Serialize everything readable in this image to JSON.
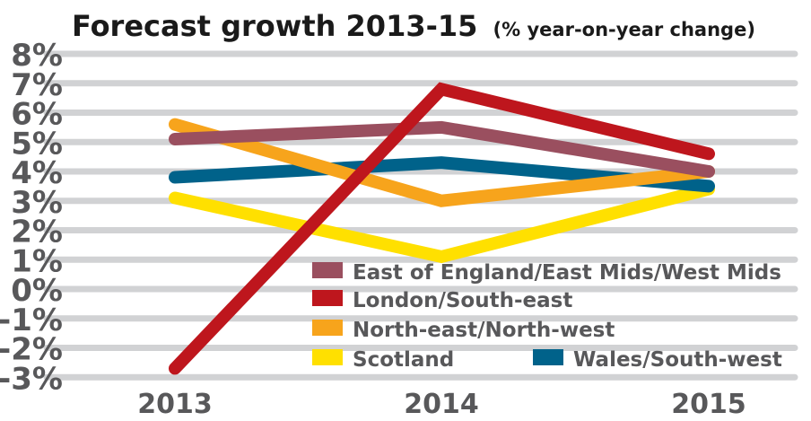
{
  "chart_data": {
    "type": "line",
    "title": "Forecast growth 2013-15",
    "subtitle": "(% year-on-year change)",
    "categories": [
      "2013",
      "2014",
      "2015"
    ],
    "ylim": [
      -3,
      8
    ],
    "yticks": [
      8,
      7,
      6,
      5,
      4,
      3,
      2,
      1,
      0,
      -1,
      -2,
      -3
    ],
    "ytick_labels": [
      "8%",
      "7%",
      "6%",
      "5%",
      "4%",
      "3%",
      "2%",
      "1%",
      "0%",
      "-1%",
      "-2%",
      "-3%"
    ],
    "grid": true,
    "legend_placement": "bottom-right",
    "series": [
      {
        "name": "East of England/East Mids/West Mids",
        "color": "#9a4f5f",
        "values": [
          5.1,
          5.5,
          4.0
        ]
      },
      {
        "name": "London/South-east",
        "color": "#be161d",
        "values": [
          -2.7,
          6.8,
          4.6
        ]
      },
      {
        "name": "North-east/North-west",
        "color": "#f7a41c",
        "values": [
          5.6,
          3.0,
          4.0
        ]
      },
      {
        "name": "Scotland",
        "color": "#ffe000",
        "values": [
          3.1,
          1.1,
          3.4
        ]
      },
      {
        "name": "Wales/South-west",
        "color": "#00628a",
        "values": [
          3.8,
          4.3,
          3.5
        ]
      }
    ]
  }
}
